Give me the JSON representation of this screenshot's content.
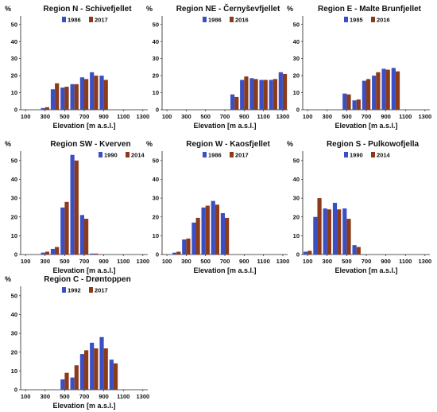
{
  "chart_data": [
    {
      "type": "bar",
      "title": "Region N - Schivefjellet",
      "xlabel": "Elevation [m a.s.l.]",
      "ylabel": "%",
      "ylim": [
        0,
        55
      ],
      "xlim": [
        50,
        1350
      ],
      "xticks": [
        100,
        300,
        500,
        700,
        900,
        1100,
        1300
      ],
      "yticks": [
        0,
        10,
        20,
        30,
        40,
        50
      ],
      "legend_position": "top-center",
      "x": [
        300,
        400,
        500,
        600,
        700,
        800,
        900
      ],
      "series": [
        {
          "name": "1986",
          "color": "#3b4fc4",
          "values": [
            1,
            12,
            13,
            15,
            19,
            22,
            20
          ]
        },
        {
          "name": "2017",
          "color": "#8b3a1a",
          "values": [
            1.5,
            15.5,
            13.5,
            15,
            18,
            20,
            17.5
          ]
        }
      ]
    },
    {
      "type": "bar",
      "title": "Region NE - Černyševfjellet",
      "xlabel": "Elevation [m a.s.l.]",
      "ylabel": "%",
      "ylim": [
        0,
        55
      ],
      "xlim": [
        50,
        1350
      ],
      "xticks": [
        100,
        300,
        500,
        700,
        900,
        1100,
        1300
      ],
      "yticks": [
        0,
        10,
        20,
        30,
        40,
        50
      ],
      "legend_position": "top-center",
      "x": [
        800,
        900,
        1000,
        1100,
        1200,
        1300
      ],
      "series": [
        {
          "name": "1986",
          "color": "#3b4fc4",
          "values": [
            9,
            17.5,
            18.5,
            17.5,
            17.5,
            22
          ]
        },
        {
          "name": "2016",
          "color": "#8b3a1a",
          "values": [
            7.5,
            19.5,
            18,
            17.5,
            18,
            21
          ]
        }
      ]
    },
    {
      "type": "bar",
      "title": "Region E - Malte Brunfjellet",
      "xlabel": "Elevation [m a.s.l.]",
      "ylabel": "%",
      "ylim": [
        0,
        55
      ],
      "xlim": [
        50,
        1350
      ],
      "xticks": [
        100,
        300,
        500,
        700,
        900,
        1100,
        1300
      ],
      "yticks": [
        0,
        10,
        20,
        30,
        40,
        50
      ],
      "legend_position": "top-center",
      "x": [
        500,
        600,
        700,
        800,
        900,
        1000
      ],
      "series": [
        {
          "name": "1985",
          "color": "#3b4fc4",
          "values": [
            9.5,
            5.5,
            17,
            20,
            24,
            24.5
          ]
        },
        {
          "name": "2016",
          "color": "#8b3a1a",
          "values": [
            9,
            6,
            18,
            22,
            23.5,
            22.5
          ]
        }
      ]
    },
    {
      "type": "bar",
      "title": "Region SW - Kverven",
      "xlabel": "Elevation [m a.s.l.]",
      "ylabel": "%",
      "ylim": [
        0,
        55
      ],
      "xlim": [
        50,
        1350
      ],
      "xticks": [
        100,
        300,
        500,
        700,
        900,
        1100,
        1300
      ],
      "yticks": [
        0,
        10,
        20,
        30,
        40,
        50
      ],
      "legend_position": "top-right",
      "x": [
        300,
        400,
        500,
        600,
        700,
        800
      ],
      "series": [
        {
          "name": "1990",
          "color": "#3b4fc4",
          "values": [
            1,
            3,
            25,
            53,
            21,
            0.5
          ]
        },
        {
          "name": "2014",
          "color": "#8b3a1a",
          "values": [
            1.5,
            4,
            28,
            50,
            19,
            0.5
          ]
        }
      ]
    },
    {
      "type": "bar",
      "title": "Region W - Kaosfjellet",
      "xlabel": "Elevation [m a.s.l.]",
      "ylabel": "%",
      "ylim": [
        0,
        55
      ],
      "xlim": [
        50,
        1350
      ],
      "xticks": [
        100,
        300,
        500,
        700,
        900,
        1100,
        1300
      ],
      "yticks": [
        0,
        10,
        20,
        30,
        40,
        50
      ],
      "legend_position": "top-center",
      "x": [
        200,
        300,
        400,
        500,
        600,
        700
      ],
      "series": [
        {
          "name": "1986",
          "color": "#3b4fc4",
          "values": [
            1,
            8,
            17,
            25,
            28.5,
            22
          ]
        },
        {
          "name": "2017",
          "color": "#8b3a1a",
          "values": [
            1.5,
            8.5,
            19.5,
            26,
            26.5,
            19.5
          ]
        }
      ]
    },
    {
      "type": "bar",
      "title": "Region S - Pulkowofjella",
      "xlabel": "Elevation [m a.s.l.]",
      "ylabel": "%",
      "ylim": [
        0,
        55
      ],
      "xlim": [
        50,
        1350
      ],
      "xticks": [
        100,
        300,
        500,
        700,
        900,
        1100,
        1300
      ],
      "yticks": [
        0,
        10,
        20,
        30,
        40,
        50
      ],
      "legend_position": "top-center",
      "x": [
        100,
        200,
        300,
        400,
        500,
        600
      ],
      "series": [
        {
          "name": "1990",
          "color": "#3b4fc4",
          "values": [
            1.5,
            20,
            24.5,
            27.5,
            24.5,
            5
          ]
        },
        {
          "name": "2014",
          "color": "#8b3a1a",
          "values": [
            2,
            30,
            24,
            24,
            19,
            4
          ]
        }
      ]
    },
    {
      "type": "bar",
      "title": "Region C - Drøntoppen",
      "xlabel": "Elevation [m a.s.l.]",
      "ylabel": "%",
      "ylim": [
        0,
        55
      ],
      "xlim": [
        50,
        1350
      ],
      "xticks": [
        100,
        300,
        500,
        700,
        900,
        1100,
        1300
      ],
      "yticks": [
        0,
        10,
        20,
        30,
        40,
        50
      ],
      "legend_position": "top-center",
      "x": [
        500,
        600,
        700,
        800,
        900,
        1000
      ],
      "series": [
        {
          "name": "1992",
          "color": "#3b4fc4",
          "values": [
            5.5,
            6.5,
            19,
            25,
            28,
            16
          ]
        },
        {
          "name": "2017",
          "color": "#8b3a1a",
          "values": [
            9,
            13,
            21,
            22,
            22,
            14
          ]
        }
      ]
    }
  ]
}
